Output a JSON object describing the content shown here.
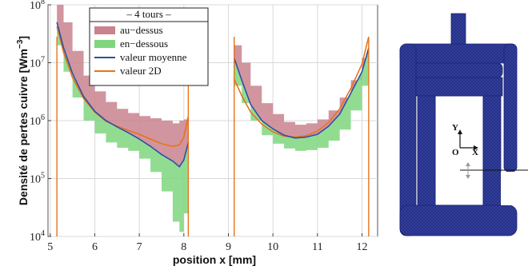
{
  "chart_data": {
    "type": "area",
    "yscale": "log",
    "xlabel": "position x [mm]",
    "ylabel": "Densité de pertes cuivre [Wm",
    "ylabel_sup": "−3",
    "ylabel_close": "]",
    "xlim": [
      4.95,
      12.35
    ],
    "ylim": [
      10000,
      100000000
    ],
    "xticks": [
      5,
      6,
      7,
      8,
      9,
      10,
      11,
      12
    ],
    "yticks": [
      {
        "value": 10000,
        "base": "10",
        "exp": "4"
      },
      {
        "value": 100000,
        "base": "10",
        "exp": "5"
      },
      {
        "value": 1000000,
        "base": "10",
        "exp": "6"
      },
      {
        "value": 10000000,
        "base": "10",
        "exp": "7"
      },
      {
        "value": 100000000,
        "base": "10",
        "exp": "8"
      }
    ],
    "grid": true,
    "legend": {
      "title": "– 4 tours –",
      "placement": "top-left",
      "entries": [
        {
          "label": "au−dessus",
          "color": "#c9828e",
          "kind": "band"
        },
        {
          "label": "en−dessous",
          "color": "#7fd67f",
          "kind": "band"
        },
        {
          "label": "valeur moyenne",
          "color": "#2f4ea5",
          "kind": "line"
        },
        {
          "label": "valeur 2D",
          "color": "#e8731a",
          "kind": "line"
        }
      ]
    },
    "segments": [
      {
        "x": [
          5.15,
          5.3,
          5.5,
          5.75,
          6.0,
          6.25,
          6.5,
          6.75,
          7.0,
          7.25,
          7.5,
          7.75,
          7.9,
          8.0,
          8.1
        ],
        "upper": [
          100000000,
          50000000,
          16000000,
          6000000,
          3200000,
          2100000,
          1600000,
          1350000,
          1200000,
          1100000,
          1000000,
          900000,
          1000000,
          1050000,
          1200000
        ],
        "lower": [
          20000000,
          7000000,
          2500000,
          1000000,
          600000,
          420000,
          340000,
          300000,
          220000,
          130000,
          60000,
          18000,
          12000,
          25000,
          40000
        ],
        "mean": [
          50000000,
          18000000,
          6500000,
          2600000,
          1450000,
          1000000,
          780000,
          620000,
          480000,
          360000,
          260000,
          200000,
          160000,
          210000,
          420000
        ],
        "twod": [
          42000000,
          15000000,
          5500000,
          2400000,
          1400000,
          980000,
          800000,
          680000,
          580000,
          480000,
          400000,
          360000,
          380000,
          520000,
          1200000
        ]
      },
      {
        "x": [
          9.13,
          9.3,
          9.5,
          9.75,
          10.0,
          10.25,
          10.5,
          10.75,
          11.0,
          11.25,
          11.5,
          11.75,
          12.0,
          12.15
        ],
        "upper": [
          20000000,
          10000000,
          4000000,
          2000000,
          1300000,
          950000,
          850000,
          900000,
          1050000,
          1500000,
          2500000,
          5000000,
          12000000,
          25000000
        ],
        "lower": [
          4000000,
          2000000,
          1000000,
          560000,
          400000,
          330000,
          300000,
          310000,
          340000,
          450000,
          700000,
          1500000,
          4000000,
          9000000
        ],
        "mean": [
          12000000,
          5000000,
          1900000,
          1000000,
          720000,
          560000,
          500000,
          520000,
          580000,
          800000,
          1300000,
          3000000,
          7000000,
          18000000
        ],
        "twod": [
          5200000,
          2700000,
          1400000,
          870000,
          640000,
          540000,
          520000,
          550000,
          660000,
          930000,
          1600000,
          3600000,
          9500000,
          28000000
        ]
      }
    ],
    "boundaries": [
      5.15,
      8.1,
      9.13,
      12.15
    ],
    "inset": {
      "axis_y_label": "Y",
      "axis_x_label": "X",
      "origin_label": "O",
      "mesh_color": "#2a3590"
    }
  }
}
